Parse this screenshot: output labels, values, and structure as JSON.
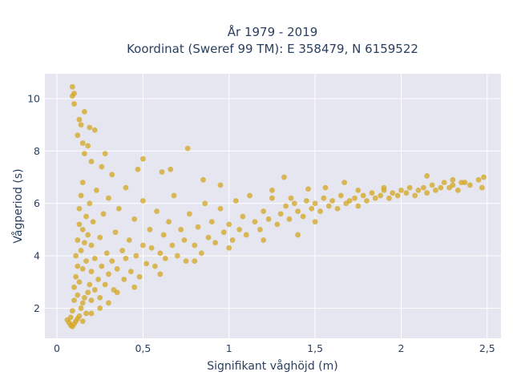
{
  "title": {
    "line1": "År 1979 - 2019",
    "line2": "Koordinat (Sweref 99 TM): E 358479, N 6159522"
  },
  "colors": {
    "plot_background": "#e5e6f0",
    "gridline": "#ffffff",
    "marker": "#d4a520",
    "text": "#2a3f5f"
  },
  "chart_data": {
    "type": "scatter",
    "title": "År 1979 - 2019 — Koordinat (Sweref 99 TM): E 358479, N 6159522",
    "xlabel": "Signifikant våghöjd (m)",
    "ylabel": "Vågperiod (s)",
    "xlim": [
      -0.07,
      2.58
    ],
    "ylim": [
      0.85,
      10.95
    ],
    "xticks": [
      0,
      0.5,
      1,
      1.5,
      2,
      2.5
    ],
    "xtick_labels": [
      "0",
      "0,5",
      "1",
      "1,5",
      "2",
      "2,5"
    ],
    "yticks": [
      2,
      4,
      6,
      8,
      10
    ],
    "ytick_labels": [
      "2",
      "4",
      "6",
      "8",
      "10"
    ],
    "grid": true,
    "legend": "none",
    "marker_opacity": 0.75,
    "series": [
      {
        "points": [
          [
            0.06,
            1.55
          ],
          [
            0.07,
            1.45
          ],
          [
            0.08,
            1.35
          ],
          [
            0.08,
            1.65
          ],
          [
            0.09,
            1.3
          ],
          [
            0.09,
            1.9
          ],
          [
            0.1,
            1.4
          ],
          [
            0.1,
            2.3
          ],
          [
            0.1,
            2.8
          ],
          [
            0.11,
            1.5
          ],
          [
            0.11,
            3.2
          ],
          [
            0.11,
            4.0
          ],
          [
            0.12,
            1.6
          ],
          [
            0.12,
            2.5
          ],
          [
            0.12,
            3.6
          ],
          [
            0.12,
            4.6
          ],
          [
            0.13,
            1.7
          ],
          [
            0.13,
            3.0
          ],
          [
            0.13,
            5.2
          ],
          [
            0.13,
            5.8
          ],
          [
            0.14,
            2.0
          ],
          [
            0.14,
            4.2
          ],
          [
            0.14,
            6.3
          ],
          [
            0.15,
            2.2
          ],
          [
            0.15,
            3.5
          ],
          [
            0.15,
            5.0
          ],
          [
            0.15,
            6.8
          ],
          [
            0.16,
            2.4
          ],
          [
            0.16,
            4.5
          ],
          [
            0.17,
            1.8
          ],
          [
            0.17,
            3.8
          ],
          [
            0.17,
            5.5
          ],
          [
            0.18,
            2.6
          ],
          [
            0.18,
            4.8
          ],
          [
            0.19,
            2.9
          ],
          [
            0.19,
            6.0
          ],
          [
            0.2,
            2.3
          ],
          [
            0.2,
            3.4
          ],
          [
            0.2,
            4.4
          ],
          [
            0.21,
            5.3
          ],
          [
            0.22,
            2.7
          ],
          [
            0.22,
            3.9
          ],
          [
            0.23,
            6.5
          ],
          [
            0.24,
            3.1
          ],
          [
            0.25,
            2.4
          ],
          [
            0.25,
            4.7
          ],
          [
            0.26,
            3.6
          ],
          [
            0.27,
            5.6
          ],
          [
            0.28,
            2.9
          ],
          [
            0.29,
            4.1
          ],
          [
            0.3,
            3.3
          ],
          [
            0.3,
            6.2
          ],
          [
            0.32,
            3.8
          ],
          [
            0.33,
            2.7
          ],
          [
            0.34,
            4.9
          ],
          [
            0.35,
            3.5
          ],
          [
            0.36,
            5.8
          ],
          [
            0.38,
            4.2
          ],
          [
            0.39,
            3.1
          ],
          [
            0.4,
            3.9
          ],
          [
            0.4,
            6.6
          ],
          [
            0.42,
            4.6
          ],
          [
            0.43,
            3.4
          ],
          [
            0.45,
            5.4
          ],
          [
            0.46,
            4.0
          ],
          [
            0.48,
            3.2
          ],
          [
            0.5,
            4.4
          ],
          [
            0.5,
            6.1
          ],
          [
            0.52,
            3.7
          ],
          [
            0.54,
            5.0
          ],
          [
            0.55,
            4.3
          ],
          [
            0.57,
            3.6
          ],
          [
            0.58,
            5.7
          ],
          [
            0.6,
            4.1
          ],
          [
            0.62,
            4.8
          ],
          [
            0.63,
            3.9
          ],
          [
            0.65,
            5.3
          ],
          [
            0.67,
            4.4
          ],
          [
            0.68,
            6.3
          ],
          [
            0.7,
            4.0
          ],
          [
            0.72,
            5.0
          ],
          [
            0.74,
            4.6
          ],
          [
            0.75,
            3.8
          ],
          [
            0.77,
            5.6
          ],
          [
            0.8,
            4.4
          ],
          [
            0.82,
            5.1
          ],
          [
            0.84,
            4.1
          ],
          [
            0.86,
            6.0
          ],
          [
            0.88,
            4.7
          ],
          [
            0.9,
            5.3
          ],
          [
            0.92,
            4.5
          ],
          [
            0.95,
            5.8
          ],
          [
            0.97,
            4.9
          ],
          [
            1.0,
            5.2
          ],
          [
            1.02,
            4.6
          ],
          [
            1.04,
            6.1
          ],
          [
            1.06,
            5.0
          ],
          [
            1.08,
            5.5
          ],
          [
            1.1,
            4.8
          ],
          [
            1.12,
            6.3
          ],
          [
            1.15,
            5.3
          ],
          [
            1.18,
            5.0
          ],
          [
            1.2,
            5.7
          ],
          [
            1.23,
            5.4
          ],
          [
            1.25,
            6.2
          ],
          [
            1.28,
            5.2
          ],
          [
            1.3,
            5.6
          ],
          [
            1.33,
            5.9
          ],
          [
            1.35,
            5.4
          ],
          [
            1.38,
            6.0
          ],
          [
            1.4,
            5.7
          ],
          [
            1.43,
            5.5
          ],
          [
            1.45,
            6.1
          ],
          [
            1.48,
            5.8
          ],
          [
            1.5,
            6.0
          ],
          [
            1.53,
            5.7
          ],
          [
            1.55,
            6.2
          ],
          [
            1.58,
            5.9
          ],
          [
            1.6,
            6.1
          ],
          [
            1.63,
            5.8
          ],
          [
            1.65,
            6.3
          ],
          [
            1.68,
            6.0
          ],
          [
            1.7,
            6.1
          ],
          [
            1.73,
            6.2
          ],
          [
            1.75,
            5.9
          ],
          [
            1.78,
            6.3
          ],
          [
            1.8,
            6.1
          ],
          [
            1.83,
            6.4
          ],
          [
            1.85,
            6.2
          ],
          [
            1.88,
            6.3
          ],
          [
            1.9,
            6.5
          ],
          [
            1.93,
            6.2
          ],
          [
            1.95,
            6.4
          ],
          [
            1.98,
            6.3
          ],
          [
            2.0,
            6.5
          ],
          [
            2.03,
            6.4
          ],
          [
            2.05,
            6.6
          ],
          [
            2.08,
            6.3
          ],
          [
            2.1,
            6.5
          ],
          [
            2.13,
            6.6
          ],
          [
            2.15,
            6.4
          ],
          [
            2.18,
            6.7
          ],
          [
            2.2,
            6.5
          ],
          [
            2.23,
            6.6
          ],
          [
            2.25,
            6.8
          ],
          [
            2.28,
            6.6
          ],
          [
            2.3,
            6.7
          ],
          [
            2.33,
            6.5
          ],
          [
            2.35,
            6.8
          ],
          [
            2.4,
            6.7
          ],
          [
            2.45,
            6.9
          ],
          [
            2.47,
            6.6
          ],
          [
            2.48,
            7.0
          ],
          [
            0.09,
            10.45
          ],
          [
            0.1,
            10.2
          ],
          [
            0.09,
            10.1
          ],
          [
            0.1,
            9.8
          ],
          [
            0.13,
            9.2
          ],
          [
            0.14,
            9.0
          ],
          [
            0.16,
            9.5
          ],
          [
            0.19,
            8.9
          ],
          [
            0.22,
            8.8
          ],
          [
            0.12,
            8.6
          ],
          [
            0.15,
            8.3
          ],
          [
            0.28,
            7.9
          ],
          [
            0.76,
            8.1
          ],
          [
            0.5,
            7.7
          ],
          [
            0.26,
            7.4
          ],
          [
            0.32,
            7.1
          ],
          [
            0.47,
            7.3
          ],
          [
            0.61,
            7.2
          ],
          [
            0.66,
            7.3
          ],
          [
            0.85,
            6.9
          ],
          [
            1.32,
            7.0
          ],
          [
            1.67,
            6.8
          ],
          [
            2.3,
            6.9
          ],
          [
            2.15,
            7.05
          ],
          [
            1.36,
            6.2
          ],
          [
            1.56,
            6.6
          ],
          [
            0.2,
            7.6
          ],
          [
            0.16,
            7.9
          ],
          [
            0.18,
            8.2
          ],
          [
            0.95,
            6.7
          ],
          [
            1.25,
            6.5
          ],
          [
            1.46,
            6.55
          ],
          [
            1.75,
            6.5
          ],
          [
            1.9,
            6.6
          ],
          [
            2.37,
            6.8
          ],
          [
            1.4,
            4.8
          ],
          [
            1.5,
            5.3
          ],
          [
            1.2,
            4.6
          ],
          [
            1.0,
            4.3
          ],
          [
            0.8,
            3.8
          ],
          [
            0.6,
            3.3
          ],
          [
            0.45,
            2.8
          ],
          [
            0.35,
            2.6
          ],
          [
            0.3,
            2.2
          ],
          [
            0.25,
            2.0
          ],
          [
            0.2,
            1.8
          ],
          [
            0.15,
            1.5
          ]
        ]
      }
    ]
  }
}
